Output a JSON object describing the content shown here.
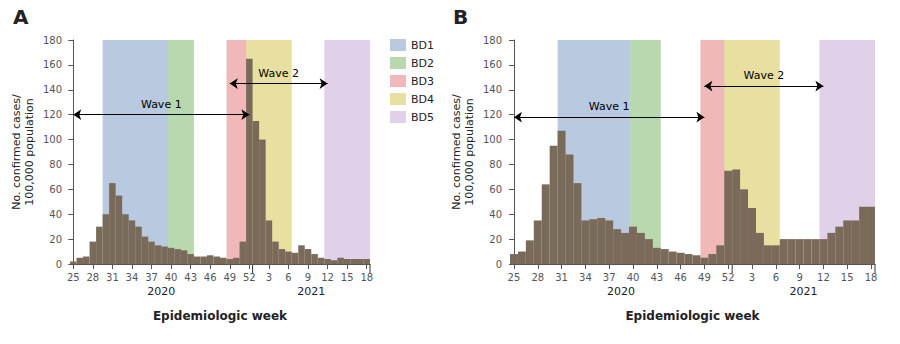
{
  "chart_data": [
    {
      "type": "bar",
      "title": "A",
      "categories": [
        "25",
        null,
        null,
        "28",
        null,
        null,
        "31",
        null,
        null,
        "34",
        null,
        null,
        "37",
        null,
        null,
        "40",
        null,
        null,
        "43",
        null,
        null,
        "46",
        null,
        null,
        "49",
        null,
        null,
        "52",
        null,
        null,
        "3",
        null,
        null,
        "6",
        null,
        null,
        "9",
        null,
        null,
        "12",
        null,
        null,
        "15",
        null,
        null,
        "18"
      ],
      "values": [
        2,
        5,
        6,
        18,
        30,
        40,
        65,
        55,
        40,
        35,
        30,
        22,
        18,
        15,
        14,
        13,
        12,
        11,
        8,
        6,
        6,
        7,
        6,
        5,
        4,
        5,
        18,
        165,
        115,
        100,
        35,
        18,
        12,
        10,
        9,
        15,
        12,
        8,
        5,
        4,
        3,
        5,
        4,
        4,
        4,
        4
      ],
      "color": "#7a6a5a",
      "xlabel": "Epidemiologic week",
      "ylabel": "No. confirmed cases/\n100,000 population",
      "ylim": [
        0,
        180
      ],
      "yticks": [
        0,
        20,
        40,
        60,
        80,
        100,
        120,
        140,
        160,
        180
      ],
      "grid": false,
      "bands": [
        {
          "name": "BD1",
          "color": "#b8c9e0",
          "start": 5,
          "end": 15
        },
        {
          "name": "BD2",
          "color": "#b8d9b0",
          "start": 15,
          "end": 18
        },
        {
          "name": "BD3",
          "color": "#f0b8b8",
          "start": 24,
          "end": 27
        },
        {
          "name": "BD4",
          "color": "#e8e0a0",
          "start": 27,
          "end": 33
        },
        {
          "name": "BD5",
          "color": "#e0d0e8",
          "start": 39,
          "end": 45
        }
      ],
      "waves": [
        {
          "text": "Wave 1",
          "y": 120,
          "start": 0,
          "end": 27
        },
        {
          "text": "Wave 2",
          "y": 145,
          "start": 24,
          "end": 39
        }
      ],
      "periods": [
        {
          "text": "2020",
          "start": 0,
          "end": 27
        },
        {
          "text": "2021",
          "start": 28,
          "end": 45
        }
      ]
    },
    {
      "type": "bar",
      "title": "B",
      "categories": [
        "25",
        null,
        null,
        "28",
        null,
        null,
        "31",
        null,
        null,
        "34",
        null,
        null,
        "37",
        null,
        null,
        "40",
        null,
        null,
        "43",
        null,
        null,
        "46",
        null,
        null,
        "49",
        null,
        null,
        "52",
        null,
        null,
        "3",
        null,
        null,
        "6",
        null,
        null,
        "9",
        null,
        null,
        "12",
        null,
        null,
        "15",
        null,
        null,
        "18"
      ],
      "values": [
        8,
        10,
        19,
        35,
        64,
        95,
        107,
        88,
        65,
        35,
        36,
        37,
        35,
        28,
        25,
        30,
        25,
        20,
        13,
        12,
        10,
        9,
        8,
        7,
        5,
        8,
        15,
        75,
        76,
        60,
        45,
        25,
        15,
        15,
        20,
        20,
        20,
        20,
        20,
        20,
        25,
        30,
        35,
        35,
        46,
        46
      ],
      "color": "#7a6a5a",
      "xlabel": "Epidemiologic week",
      "ylabel": "No. confirmed cases/\n100,000 population",
      "ylim": [
        0,
        180
      ],
      "yticks": [
        0,
        20,
        40,
        60,
        80,
        100,
        120,
        140,
        160,
        180
      ],
      "grid": false,
      "bands": [
        {
          "name": "BD1",
          "color": "#b8c9e0",
          "start": 6,
          "end": 15
        },
        {
          "name": "BD2",
          "color": "#b8d9b0",
          "start": 15,
          "end": 18
        },
        {
          "name": "BD3",
          "color": "#f0b8b8",
          "start": 24,
          "end": 27
        },
        {
          "name": "BD4",
          "color": "#e8e0a0",
          "start": 27,
          "end": 33
        },
        {
          "name": "BD5",
          "color": "#e0d0e8",
          "start": 39,
          "end": 45
        }
      ],
      "waves": [
        {
          "text": "Wave 1",
          "y": 118,
          "start": 0,
          "end": 24
        },
        {
          "text": "Wave 2",
          "y": 143,
          "start": 24,
          "end": 39
        }
      ],
      "periods": [
        {
          "text": "2020",
          "start": 0,
          "end": 27
        },
        {
          "text": "2021",
          "start": 28,
          "end": 45
        }
      ]
    }
  ]
}
